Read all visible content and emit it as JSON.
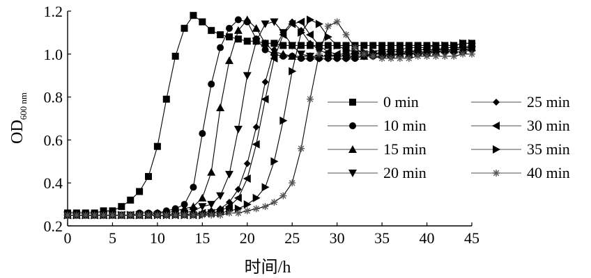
{
  "chart_data": {
    "type": "line",
    "title": "",
    "xlabel": "时间/h",
    "ylabel_main": "OD",
    "ylabel_sub": "600 nm",
    "xlim": [
      0,
      45
    ],
    "ylim": [
      0.2,
      1.2
    ],
    "xticks": [
      0,
      5,
      10,
      15,
      20,
      25,
      30,
      35,
      40,
      45
    ],
    "yticks": [
      0.2,
      0.4,
      0.6,
      0.8,
      1.0,
      1.2
    ],
    "ytick_labels": [
      "0.2",
      "0.4",
      "0.6",
      "0.8",
      "1.0",
      "1.2"
    ],
    "grid": false,
    "legend_position": "right",
    "series": [
      {
        "name": "0 min",
        "marker": "square",
        "x": [
          0,
          1,
          2,
          3,
          4,
          5,
          6,
          7,
          8,
          9,
          10,
          11,
          12,
          13,
          14,
          15,
          16,
          17,
          18,
          19,
          20,
          21,
          22,
          23,
          24,
          25,
          26,
          27,
          28,
          29,
          30,
          31,
          32,
          33,
          34,
          35,
          36,
          37,
          38,
          39,
          40,
          41,
          42,
          43,
          44,
          45
        ],
        "y": [
          0.26,
          0.26,
          0.26,
          0.26,
          0.27,
          0.27,
          0.29,
          0.32,
          0.36,
          0.43,
          0.57,
          0.79,
          0.99,
          1.12,
          1.18,
          1.15,
          1.11,
          1.09,
          1.08,
          1.07,
          1.06,
          1.06,
          1.05,
          1.05,
          1.04,
          1.04,
          1.04,
          1.04,
          1.04,
          1.04,
          1.04,
          1.04,
          1.04,
          1.04,
          1.04,
          1.04,
          1.04,
          1.04,
          1.04,
          1.04,
          1.04,
          1.04,
          1.04,
          1.04,
          1.05,
          1.05
        ]
      },
      {
        "name": "10 min",
        "marker": "circle",
        "x": [
          0,
          1,
          2,
          3,
          4,
          5,
          6,
          7,
          8,
          9,
          10,
          11,
          12,
          13,
          14,
          15,
          16,
          17,
          18,
          19,
          20,
          21,
          22,
          23,
          24,
          25,
          26,
          27,
          28,
          29,
          30,
          31,
          32,
          33,
          34,
          35,
          36,
          37,
          38,
          39,
          40,
          41,
          42,
          43,
          44,
          45
        ],
        "y": [
          0.25,
          0.25,
          0.25,
          0.25,
          0.25,
          0.25,
          0.25,
          0.25,
          0.26,
          0.26,
          0.26,
          0.27,
          0.28,
          0.3,
          0.38,
          0.63,
          0.86,
          1.03,
          1.12,
          1.16,
          1.15,
          1.07,
          1.02,
          1.0,
          0.99,
          0.99,
          0.98,
          0.98,
          0.98,
          0.98,
          0.98,
          0.98,
          0.98,
          0.99,
          0.99,
          0.99,
          0.99,
          1.0,
          1.0,
          1.0,
          1.0,
          1.01,
          1.01,
          1.01,
          1.01,
          1.02
        ]
      },
      {
        "name": "15 min",
        "marker": "triangle-up",
        "x": [
          0,
          1,
          2,
          3,
          4,
          5,
          6,
          7,
          8,
          9,
          10,
          11,
          12,
          13,
          14,
          15,
          16,
          17,
          18,
          19,
          20,
          21,
          22,
          23,
          24,
          25,
          26,
          27,
          28,
          29,
          30,
          31,
          32,
          33,
          34,
          35,
          36,
          37,
          38,
          39,
          40,
          41,
          42,
          43,
          44,
          45
        ],
        "y": [
          0.25,
          0.25,
          0.25,
          0.25,
          0.25,
          0.25,
          0.25,
          0.25,
          0.25,
          0.25,
          0.26,
          0.26,
          0.27,
          0.28,
          0.29,
          0.33,
          0.45,
          0.75,
          0.97,
          1.11,
          1.16,
          1.12,
          1.05,
          1.01,
          1.0,
          0.99,
          0.99,
          0.99,
          0.99,
          0.99,
          0.99,
          0.99,
          0.99,
          0.99,
          1.0,
          1.0,
          1.0,
          1.0,
          1.0,
          1.01,
          1.01,
          1.01,
          1.02,
          1.02,
          1.02,
          1.03
        ]
      },
      {
        "name": "20 min",
        "marker": "triangle-down",
        "x": [
          0,
          1,
          2,
          3,
          4,
          5,
          6,
          7,
          8,
          9,
          10,
          11,
          12,
          13,
          14,
          15,
          16,
          17,
          18,
          19,
          20,
          21,
          22,
          23,
          24,
          25,
          26,
          27,
          28,
          29,
          30,
          31,
          32,
          33,
          34,
          35,
          36,
          37,
          38,
          39,
          40,
          41,
          42,
          43,
          44,
          45
        ],
        "y": [
          0.25,
          0.25,
          0.25,
          0.25,
          0.25,
          0.25,
          0.25,
          0.25,
          0.25,
          0.25,
          0.25,
          0.25,
          0.26,
          0.26,
          0.27,
          0.29,
          0.3,
          0.34,
          0.44,
          0.65,
          0.9,
          1.06,
          1.14,
          1.15,
          1.1,
          1.04,
          1.0,
          0.99,
          0.98,
          0.98,
          0.98,
          0.98,
          0.99,
          0.99,
          0.99,
          0.99,
          1.0,
          1.0,
          1.0,
          1.0,
          1.01,
          1.01,
          1.01,
          1.02,
          1.02,
          1.02
        ]
      },
      {
        "name": "25 min",
        "marker": "diamond",
        "x": [
          0,
          1,
          2,
          3,
          4,
          5,
          6,
          7,
          8,
          9,
          10,
          11,
          12,
          13,
          14,
          15,
          16,
          17,
          18,
          19,
          20,
          21,
          22,
          23,
          24,
          25,
          26,
          27,
          28,
          29,
          30,
          31,
          32,
          33,
          34,
          35,
          36,
          37,
          38,
          39,
          40,
          41,
          42,
          43,
          44,
          45
        ],
        "y": [
          0.25,
          0.25,
          0.25,
          0.25,
          0.25,
          0.25,
          0.25,
          0.25,
          0.25,
          0.25,
          0.25,
          0.25,
          0.25,
          0.25,
          0.26,
          0.26,
          0.27,
          0.28,
          0.31,
          0.37,
          0.49,
          0.66,
          0.87,
          1.02,
          1.1,
          1.15,
          1.11,
          1.05,
          1.02,
          1.0,
          0.99,
          0.99,
          0.99,
          0.99,
          1.0,
          1.0,
          1.0,
          1.0,
          1.01,
          1.01,
          1.01,
          1.02,
          1.02,
          1.02,
          1.03,
          1.03
        ]
      },
      {
        "name": "30 min",
        "marker": "triangle-left",
        "x": [
          0,
          1,
          2,
          3,
          4,
          5,
          6,
          7,
          8,
          9,
          10,
          11,
          12,
          13,
          14,
          15,
          16,
          17,
          18,
          19,
          20,
          21,
          22,
          23,
          24,
          25,
          26,
          27,
          28,
          29,
          30,
          31,
          32,
          33,
          34,
          35,
          36,
          37,
          38,
          39,
          40,
          41,
          42,
          43,
          44,
          45
        ],
        "y": [
          0.25,
          0.25,
          0.25,
          0.25,
          0.25,
          0.25,
          0.25,
          0.25,
          0.25,
          0.25,
          0.25,
          0.25,
          0.25,
          0.25,
          0.25,
          0.26,
          0.26,
          0.27,
          0.29,
          0.33,
          0.42,
          0.58,
          0.79,
          0.98,
          1.09,
          1.14,
          1.15,
          1.09,
          1.04,
          1.01,
          1.0,
          1.0,
          1.0,
          1.0,
          1.0,
          1.01,
          1.01,
          1.01,
          1.01,
          1.02,
          1.02,
          1.02,
          1.03,
          1.03,
          1.03,
          1.04
        ]
      },
      {
        "name": "35 min",
        "marker": "triangle-right",
        "x": [
          0,
          1,
          2,
          3,
          4,
          5,
          6,
          7,
          8,
          9,
          10,
          11,
          12,
          13,
          14,
          15,
          16,
          17,
          18,
          19,
          20,
          21,
          22,
          23,
          24,
          25,
          26,
          27,
          28,
          29,
          30,
          31,
          32,
          33,
          34,
          35,
          36,
          37,
          38,
          39,
          40,
          41,
          42,
          43,
          44,
          45
        ],
        "y": [
          0.25,
          0.25,
          0.25,
          0.25,
          0.25,
          0.25,
          0.25,
          0.25,
          0.25,
          0.25,
          0.25,
          0.25,
          0.25,
          0.25,
          0.25,
          0.25,
          0.26,
          0.26,
          0.27,
          0.28,
          0.3,
          0.33,
          0.38,
          0.5,
          0.69,
          0.92,
          1.1,
          1.16,
          1.14,
          1.08,
          1.04,
          1.02,
          1.01,
          1.01,
          1.01,
          1.02,
          1.02,
          1.02,
          1.03,
          1.03,
          1.03,
          1.04,
          1.04,
          1.04,
          1.05,
          1.05
        ]
      },
      {
        "name": "40 min",
        "marker": "star",
        "x": [
          0,
          1,
          2,
          3,
          4,
          5,
          6,
          7,
          8,
          9,
          10,
          11,
          12,
          13,
          14,
          15,
          16,
          17,
          18,
          19,
          20,
          21,
          22,
          23,
          24,
          25,
          26,
          27,
          28,
          29,
          30,
          31,
          32,
          33,
          34,
          35,
          36,
          37,
          38,
          39,
          40,
          41,
          42,
          43,
          44,
          45
        ],
        "y": [
          0.25,
          0.25,
          0.25,
          0.25,
          0.25,
          0.25,
          0.25,
          0.25,
          0.25,
          0.25,
          0.25,
          0.25,
          0.25,
          0.25,
          0.25,
          0.25,
          0.25,
          0.25,
          0.26,
          0.26,
          0.27,
          0.28,
          0.29,
          0.31,
          0.34,
          0.4,
          0.56,
          0.79,
          1.0,
          1.13,
          1.15,
          1.09,
          1.03,
          1.0,
          0.99,
          0.98,
          0.98,
          0.98,
          0.98,
          0.99,
          0.99,
          0.99,
          0.99,
          0.99,
          1.0,
          1.0
        ]
      }
    ]
  },
  "legend": {
    "columns": [
      [
        "0 min",
        "10 min",
        "15 min",
        "20 min"
      ],
      [
        "25 min",
        "30 min",
        "35 min",
        "40 min"
      ]
    ]
  }
}
